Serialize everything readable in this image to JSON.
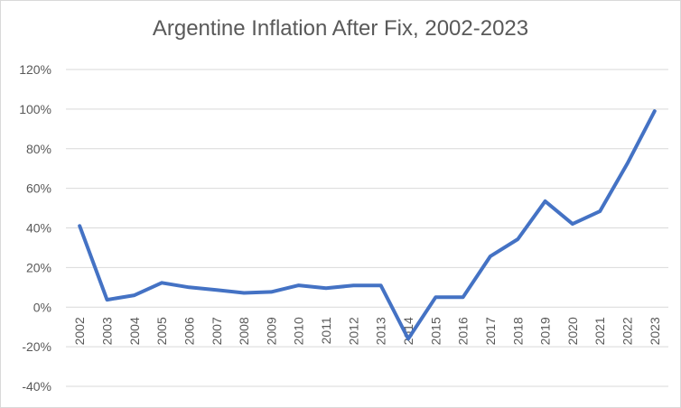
{
  "chart_data": {
    "type": "line",
    "title": "Argentine Inflation After Fix, 2002-2023",
    "xlabel": "",
    "ylabel": "",
    "ylim": [
      -40,
      120
    ],
    "y_ticks": [
      -40,
      -20,
      0,
      20,
      40,
      60,
      80,
      100,
      120
    ],
    "y_tick_labels": [
      "-40%",
      "-20%",
      "0%",
      "20%",
      "40%",
      "60%",
      "80%",
      "100%",
      "120%"
    ],
    "grid": true,
    "legend": "none",
    "categories": [
      "2002",
      "2003",
      "2004",
      "2005",
      "2006",
      "2007",
      "2008",
      "2009",
      "2010",
      "2011",
      "2012",
      "2013",
      "2014",
      "2015",
      "2016",
      "2017",
      "2018",
      "2019",
      "2020",
      "2021",
      "2022",
      "2023"
    ],
    "series": [
      {
        "color": "#4472C4",
        "values": [
          41,
          3.7,
          6,
          12.3,
          10,
          8.7,
          7.2,
          7.7,
          11,
          9.6,
          10.9,
          10.9,
          -16,
          5,
          5,
          25.7,
          34.3,
          53.5,
          42,
          48.4,
          72.4,
          99
        ]
      }
    ]
  }
}
